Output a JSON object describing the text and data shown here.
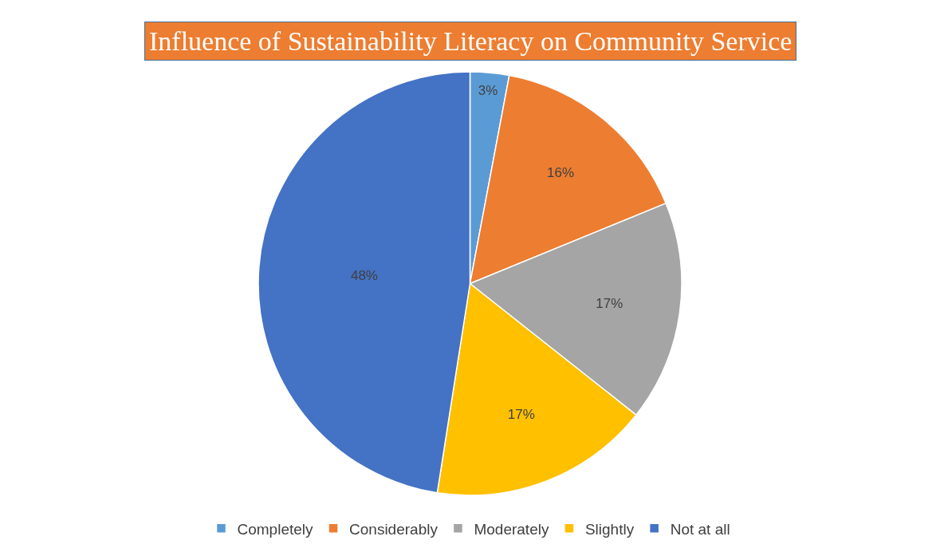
{
  "chart_data": {
    "type": "pie",
    "title": "Influence of Sustainability Literacy on Community Service",
    "categories": [
      "Completely",
      "Considerably",
      "Moderately",
      "Slightly",
      "Not at all"
    ],
    "values": [
      3,
      16,
      17,
      17,
      48
    ],
    "value_labels": [
      "3%",
      "16%",
      "17%",
      "17%",
      "48%"
    ],
    "colors": [
      "#5b9bd5",
      "#ed7d31",
      "#a5a5a5",
      "#ffc000",
      "#4472c4"
    ],
    "legend": "bottom"
  }
}
